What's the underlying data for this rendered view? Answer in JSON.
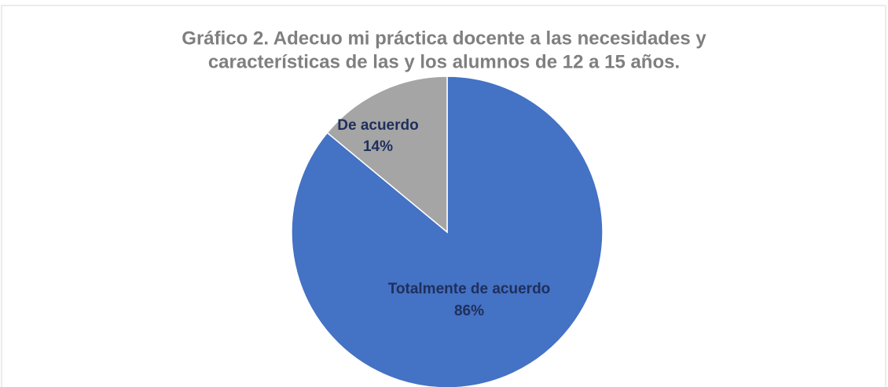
{
  "chart_data": {
    "type": "pie",
    "title": [
      "Gráfico 2. Adecuo mi práctica docente a las necesidades y",
      "características de las y los alumnos de 12 a 15 años."
    ],
    "categories": [
      "Totalmente de acuerdo",
      "De acuerdo"
    ],
    "values": [
      86,
      14
    ],
    "value_labels": [
      "86%",
      "14%"
    ],
    "colors": [
      "#4472c4",
      "#a5a5a5"
    ]
  }
}
